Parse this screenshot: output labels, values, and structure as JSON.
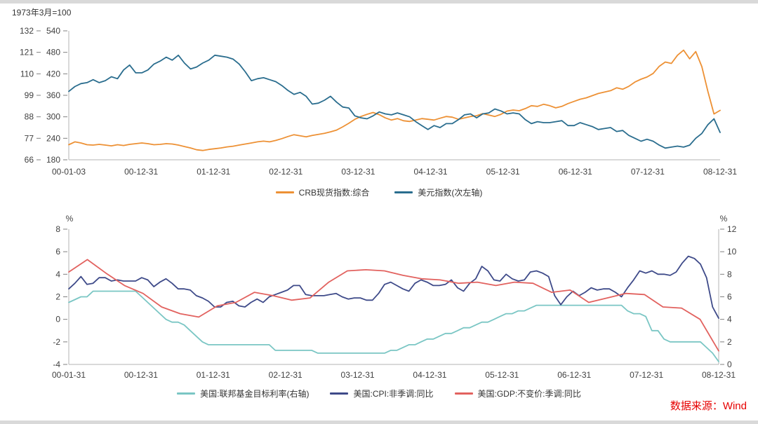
{
  "meta": {
    "note": "1973年3月=100",
    "source": "数据来源：Wind"
  },
  "colors": {
    "crb": "#ED9135",
    "usd": "#2A6D8E",
    "ffr": "#7AC6C4",
    "cpi": "#3E4A89",
    "gdp": "#E2625F",
    "source_text": "#E60000",
    "axis_text": "#404040"
  },
  "chart_data": [
    {
      "type": "line",
      "note": "1973年3月=100",
      "x_ticks": [
        "00-01-03",
        "00-12-31",
        "01-12-31",
        "02-12-31",
        "03-12-31",
        "04-12-31",
        "05-12-31",
        "06-12-31",
        "07-12-31",
        "08-12-31"
      ],
      "grid": false,
      "legend_position": "bottom",
      "axes": {
        "outer_left": {
          "range": [
            66,
            132
          ],
          "ticks": [
            66,
            77,
            88,
            99,
            110,
            121,
            132
          ]
        },
        "inner_left": {
          "range": [
            180,
            540
          ],
          "ticks": [
            180,
            240,
            300,
            360,
            420,
            480,
            540
          ]
        }
      },
      "series": [
        {
          "name": "CRB现货指数:综合",
          "color": "crb",
          "axis": "inner_left",
          "freq": "monthly",
          "start": "2000-01",
          "values": [
            222,
            230,
            227,
            222,
            221,
            223,
            221,
            219,
            222,
            220,
            223,
            225,
            227,
            225,
            222,
            223,
            225,
            224,
            221,
            217,
            213,
            208,
            206,
            209,
            211,
            213,
            216,
            218,
            221,
            224,
            227,
            230,
            232,
            230,
            234,
            239,
            245,
            250,
            247,
            244,
            248,
            251,
            254,
            258,
            263,
            272,
            282,
            293,
            301,
            307,
            312,
            306,
            297,
            291,
            295,
            289,
            287,
            291,
            295,
            293,
            291,
            296,
            301,
            299,
            293,
            297,
            301,
            303,
            309,
            305,
            301,
            307,
            316,
            319,
            317,
            323,
            331,
            329,
            335,
            331,
            325,
            329,
            337,
            343,
            349,
            353,
            359,
            365,
            369,
            373,
            381,
            377,
            385,
            397,
            405,
            411,
            421,
            441,
            453,
            449,
            472,
            486,
            462,
            482,
            440,
            370,
            308,
            318
          ]
        },
        {
          "name": "美元指数(次左轴)",
          "color": "usd",
          "axis": "outer_left",
          "freq": "monthly",
          "start": "2000-01",
          "values": [
            101,
            103.5,
            105,
            105.5,
            107,
            105.5,
            106.5,
            108.5,
            107.5,
            112,
            114.5,
            110.5,
            110.5,
            112,
            115,
            116.5,
            118.5,
            117,
            119.5,
            115.5,
            112.5,
            113.5,
            115.5,
            117,
            119.5,
            119,
            118.5,
            117.5,
            115,
            111,
            106.5,
            107.5,
            108,
            107,
            106,
            104,
            101.5,
            99.5,
            100.5,
            98.5,
            94.5,
            95,
            96.5,
            98.5,
            95.5,
            93,
            92.5,
            88.5,
            87.5,
            87,
            88.5,
            90.5,
            89.5,
            89,
            90,
            89,
            88,
            85.5,
            83.5,
            81.5,
            83.5,
            82.5,
            84.5,
            84.5,
            86.5,
            89,
            89.5,
            87.5,
            89.5,
            90,
            92,
            91,
            89.5,
            90,
            89.5,
            86.5,
            84.5,
            85.5,
            85,
            85,
            85.5,
            86,
            83.5,
            83.5,
            85,
            84,
            83,
            81.5,
            82,
            82.5,
            80.5,
            81,
            78.5,
            77,
            75.5,
            76.5,
            75.5,
            73.5,
            72,
            72.5,
            73,
            72.5,
            73.5,
            77,
            79.5,
            84,
            87,
            80
          ]
        }
      ]
    },
    {
      "type": "line",
      "x_ticks": [
        "00-01-31",
        "00-12-31",
        "01-12-31",
        "02-12-31",
        "03-12-31",
        "04-12-31",
        "05-12-31",
        "06-12-31",
        "07-12-31",
        "08-12-31"
      ],
      "grid": false,
      "legend_position": "bottom",
      "axes": {
        "left": {
          "unit": "%",
          "range": [
            -4,
            8
          ],
          "ticks": [
            -4,
            -2,
            0,
            2,
            4,
            6,
            8
          ]
        },
        "right": {
          "unit": "%",
          "range": [
            0,
            12
          ],
          "ticks": [
            0,
            2,
            4,
            6,
            8,
            10,
            12
          ]
        }
      },
      "series": [
        {
          "name": "美国:联邦基金目标利率(右轴)",
          "color": "ffr",
          "axis": "right",
          "freq": "monthly",
          "start": "2000-01",
          "values": [
            5.5,
            5.75,
            6,
            6,
            6.5,
            6.5,
            6.5,
            6.5,
            6.5,
            6.5,
            6.5,
            6.5,
            6,
            5.5,
            5,
            4.5,
            4,
            3.75,
            3.75,
            3.5,
            3,
            2.5,
            2,
            1.75,
            1.75,
            1.75,
            1.75,
            1.75,
            1.75,
            1.75,
            1.75,
            1.75,
            1.75,
            1.75,
            1.25,
            1.25,
            1.25,
            1.25,
            1.25,
            1.25,
            1.25,
            1,
            1,
            1,
            1,
            1,
            1,
            1,
            1,
            1,
            1,
            1,
            1,
            1.25,
            1.25,
            1.5,
            1.75,
            1.75,
            2,
            2.25,
            2.25,
            2.5,
            2.75,
            2.75,
            3,
            3.25,
            3.25,
            3.5,
            3.75,
            3.75,
            4,
            4.25,
            4.5,
            4.5,
            4.75,
            4.75,
            5,
            5.25,
            5.25,
            5.25,
            5.25,
            5.25,
            5.25,
            5.25,
            5.25,
            5.25,
            5.25,
            5.25,
            5.25,
            5.25,
            5.25,
            5.25,
            4.75,
            4.5,
            4.5,
            4.25,
            3,
            3,
            2.25,
            2,
            2,
            2,
            2,
            2,
            2,
            1.5,
            1,
            0.25
          ]
        },
        {
          "name": "美国:CPI:非季调:同比",
          "color": "cpi",
          "axis": "left",
          "freq": "monthly",
          "start": "2000-01",
          "values": [
            2.7,
            3.2,
            3.8,
            3.1,
            3.2,
            3.7,
            3.7,
            3.4,
            3.5,
            3.4,
            3.4,
            3.4,
            3.7,
            3.5,
            2.9,
            3.3,
            3.6,
            3.2,
            2.7,
            2.7,
            2.6,
            2.1,
            1.9,
            1.6,
            1.1,
            1.1,
            1.5,
            1.6,
            1.2,
            1.1,
            1.5,
            1.8,
            1.5,
            2.0,
            2.2,
            2.4,
            2.6,
            3.0,
            3.0,
            2.2,
            2.1,
            2.1,
            2.1,
            2.2,
            2.3,
            2.0,
            1.8,
            1.9,
            1.9,
            1.7,
            1.7,
            2.3,
            3.1,
            3.3,
            3.0,
            2.7,
            2.5,
            3.2,
            3.5,
            3.3,
            3.0,
            3.0,
            3.1,
            3.5,
            2.8,
            2.5,
            3.2,
            3.6,
            4.7,
            4.3,
            3.5,
            3.4,
            4.0,
            3.6,
            3.4,
            3.5,
            4.2,
            4.3,
            4.1,
            3.8,
            2.1,
            1.3,
            2.0,
            2.5,
            2.1,
            2.4,
            2.8,
            2.6,
            2.7,
            2.7,
            2.4,
            2.0,
            2.8,
            3.5,
            4.3,
            4.1,
            4.3,
            4.0,
            4.0,
            3.9,
            4.2,
            5.0,
            5.6,
            5.4,
            4.9,
            3.7,
            1.1,
            0.1
          ]
        },
        {
          "name": "美国:GDP:不变价:季调:同比",
          "color": "gdp",
          "axis": "left",
          "freq": "quarterly",
          "start": "2000-Q1",
          "values": [
            4.2,
            5.3,
            4.1,
            3.0,
            2.3,
            1.1,
            0.5,
            0.2,
            1.2,
            1.5,
            2.4,
            2.1,
            1.7,
            1.9,
            3.3,
            4.3,
            4.4,
            4.3,
            3.9,
            3.6,
            3.5,
            3.2,
            3.3,
            3.0,
            3.3,
            3.2,
            2.4,
            2.6,
            1.5,
            1.9,
            2.3,
            2.2,
            1.1,
            1.0,
            0.0,
            -2.8
          ]
        }
      ]
    }
  ]
}
